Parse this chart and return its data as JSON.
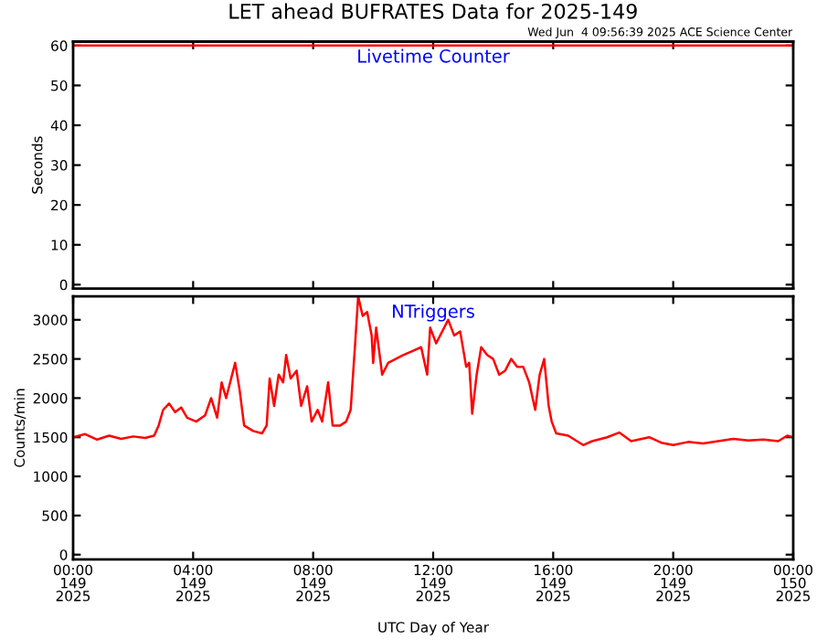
{
  "chart_data": [
    {
      "type": "line",
      "title": "LET ahead BUFRATES Data for 2025-149",
      "subtitle": "Wed Jun  4 09:56:39 2025 ACE Science Center",
      "annotations": [
        "Livetime Counter"
      ],
      "ylabel": "Seconds",
      "series": [
        {
          "color": "#ff0000",
          "x": [
            "2025-05-29T00:00",
            "2025-05-30T00:00"
          ],
          "values": [
            60,
            60
          ]
        }
      ],
      "xlim": [
        "2025-05-29T00:00",
        "2025-05-30T00:00"
      ],
      "xticks": [
        {
          "value": "2025-05-29T00:00",
          "label": null
        },
        {
          "value": "2025-05-29T04:00",
          "label": null
        },
        {
          "value": "2025-05-29T08:00",
          "label": null
        },
        {
          "value": "2025-05-29T12:00",
          "label": null
        },
        {
          "value": "2025-05-29T16:00",
          "label": null
        },
        {
          "value": "2025-05-29T20:00",
          "label": null
        },
        {
          "value": "2025-05-30T00:00",
          "label": null
        }
      ],
      "ylim": [
        -1,
        61
      ],
      "yticks": [
        0,
        10,
        20,
        30,
        40,
        50,
        60
      ],
      "tick_labels": "y",
      "grid": false
    },
    {
      "type": "line",
      "annotations": [
        "NTriggers"
      ],
      "ylabel": "Counts/min",
      "xlabel": "UTC Day of Year",
      "series": [
        {
          "color": "#ff0000",
          "x": [
            "2025-05-29T00:00",
            "2025-05-29T00:24",
            "2025-05-29T00:48",
            "2025-05-29T01:12",
            "2025-05-29T01:36",
            "2025-05-29T02:00",
            "2025-05-29T02:24",
            "2025-05-29T02:42",
            "2025-05-29T02:51",
            "2025-05-29T03:00",
            "2025-05-29T03:12",
            "2025-05-29T03:24",
            "2025-05-29T03:36",
            "2025-05-29T03:48",
            "2025-05-29T04:06",
            "2025-05-29T04:24",
            "2025-05-29T04:36",
            "2025-05-29T04:48",
            "2025-05-29T04:57",
            "2025-05-29T05:06",
            "2025-05-29T05:18",
            "2025-05-29T05:24",
            "2025-05-29T05:33",
            "2025-05-29T05:42",
            "2025-05-29T06:00",
            "2025-05-29T06:18",
            "2025-05-29T06:27",
            "2025-05-29T06:33",
            "2025-05-29T06:42",
            "2025-05-29T06:51",
            "2025-05-29T07:00",
            "2025-05-29T07:06",
            "2025-05-29T07:15",
            "2025-05-29T07:27",
            "2025-05-29T07:36",
            "2025-05-29T07:48",
            "2025-05-29T07:57",
            "2025-05-29T08:09",
            "2025-05-29T08:18",
            "2025-05-29T08:30",
            "2025-05-29T08:39",
            "2025-05-29T08:54",
            "2025-05-29T09:06",
            "2025-05-29T09:15",
            "2025-05-29T09:24",
            "2025-05-29T09:30",
            "2025-05-29T09:39",
            "2025-05-29T09:48",
            "2025-05-29T09:57",
            "2025-05-29T10:00",
            "2025-05-29T10:06",
            "2025-05-29T10:18",
            "2025-05-29T10:30",
            "2025-05-29T10:45",
            "2025-05-29T11:00",
            "2025-05-29T11:18",
            "2025-05-29T11:36",
            "2025-05-29T11:48",
            "2025-05-29T11:54",
            "2025-05-29T12:06",
            "2025-05-29T12:18",
            "2025-05-29T12:30",
            "2025-05-29T12:42",
            "2025-05-29T12:54",
            "2025-05-29T13:06",
            "2025-05-29T13:12",
            "2025-05-29T13:18",
            "2025-05-29T13:27",
            "2025-05-29T13:36",
            "2025-05-29T13:48",
            "2025-05-29T14:00",
            "2025-05-29T14:12",
            "2025-05-29T14:24",
            "2025-05-29T14:36",
            "2025-05-29T14:48",
            "2025-05-29T15:00",
            "2025-05-29T15:12",
            "2025-05-29T15:24",
            "2025-05-29T15:33",
            "2025-05-29T15:42",
            "2025-05-29T15:51",
            "2025-05-29T15:57",
            "2025-05-29T16:06",
            "2025-05-29T16:30",
            "2025-05-29T17:00",
            "2025-05-29T17:18",
            "2025-05-29T17:48",
            "2025-05-29T18:12",
            "2025-05-29T18:36",
            "2025-05-29T19:12",
            "2025-05-29T19:36",
            "2025-05-29T20:00",
            "2025-05-29T20:30",
            "2025-05-29T21:00",
            "2025-05-29T21:30",
            "2025-05-29T22:00",
            "2025-05-29T22:30",
            "2025-05-29T23:00",
            "2025-05-29T23:30",
            "2025-05-29T23:48",
            "2025-05-30T00:00"
          ],
          "values": [
            1500,
            1540,
            1470,
            1520,
            1480,
            1510,
            1490,
            1520,
            1650,
            1850,
            1930,
            1820,
            1880,
            1750,
            1700,
            1780,
            2000,
            1750,
            2200,
            2000,
            2300,
            2450,
            2100,
            1650,
            1580,
            1550,
            1650,
            2250,
            1900,
            2300,
            2200,
            2550,
            2250,
            2350,
            1900,
            2150,
            1700,
            1850,
            1700,
            2200,
            1650,
            1650,
            1700,
            1850,
            2700,
            3300,
            3050,
            3100,
            2800,
            2450,
            2900,
            2300,
            2450,
            2500,
            2550,
            2600,
            2650,
            2300,
            2900,
            2700,
            2850,
            3000,
            2800,
            2850,
            2400,
            2450,
            1800,
            2300,
            2650,
            2550,
            2500,
            2300,
            2350,
            2500,
            2400,
            2400,
            2200,
            1850,
            2300,
            2500,
            1900,
            1700,
            1550,
            1520,
            1400,
            1450,
            1500,
            1560,
            1450,
            1500,
            1430,
            1400,
            1440,
            1420,
            1450,
            1480,
            1460,
            1470,
            1450,
            1520,
            1500
          ]
        }
      ],
      "xlim": [
        "2025-05-29T00:00",
        "2025-05-30T00:00"
      ],
      "xticks": [
        {
          "value": "2025-05-29T00:00",
          "label": "00:00\n149\n2025"
        },
        {
          "value": "2025-05-29T04:00",
          "label": "04:00\n149\n2025"
        },
        {
          "value": "2025-05-29T08:00",
          "label": "08:00\n149\n2025"
        },
        {
          "value": "2025-05-29T12:00",
          "label": "12:00\n149\n2025"
        },
        {
          "value": "2025-05-29T16:00",
          "label": "16:00\n149\n2025"
        },
        {
          "value": "2025-05-29T20:00",
          "label": "20:00\n149\n2025"
        },
        {
          "value": "2025-05-30T00:00",
          "label": "00:00\n150\n2025"
        }
      ],
      "ylim": [
        -60,
        3300
      ],
      "yticks": [
        0,
        500,
        1000,
        1500,
        2000,
        2500,
        3000
      ],
      "grid": false
    }
  ]
}
